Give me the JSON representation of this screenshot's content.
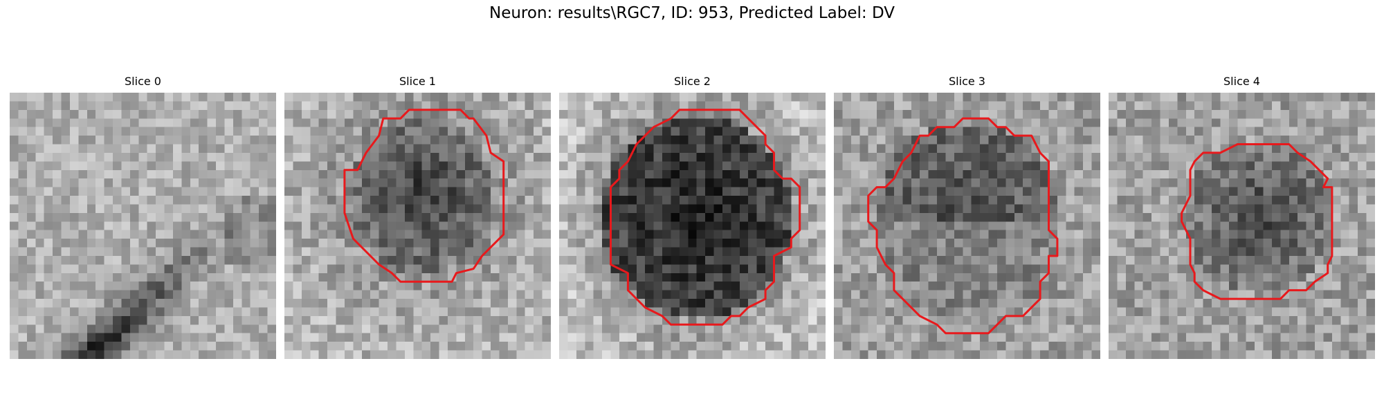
{
  "figure": {
    "title": "Neuron: results\\RGC7, ID: 953, Predicted Label: DV"
  },
  "panels": [
    {
      "title": "Slice 0",
      "has_contour": false
    },
    {
      "title": "Slice 1",
      "has_contour": true
    },
    {
      "title": "Slice 2",
      "has_contour": true
    },
    {
      "title": "Slice 3",
      "has_contour": true
    },
    {
      "title": "Slice 4",
      "has_contour": true
    }
  ],
  "colors": {
    "contour": "#e8191c",
    "background": "#ffffff"
  }
}
